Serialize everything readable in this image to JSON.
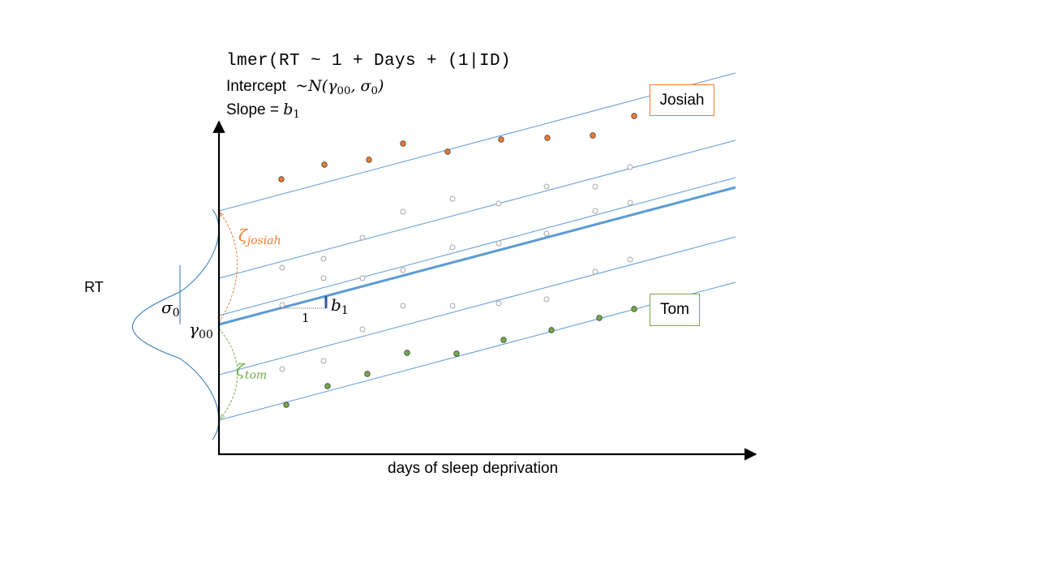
{
  "formula": {
    "code": "lmer(RT ~ 1 + Days + (1|ID)",
    "intercept_label": "Intercept",
    "intercept_dist": "~N(γ",
    "intercept_sub": "00",
    "intercept_rest": ", σ",
    "intercept_sub2": "0",
    "intercept_close": ")",
    "slope_label": "Slope = ",
    "slope_sym": "b",
    "slope_sub": "1"
  },
  "axes": {
    "y_label": "RT",
    "x_label": "days of sleep deprivation"
  },
  "annotations": {
    "sigma": "σ",
    "sigma_sub": "0",
    "gamma": "γ",
    "gamma_sub": "00",
    "b": "b",
    "b_sub": "1",
    "run": "1",
    "zeta_josiah": "ζ",
    "zeta_josiah_sub": "josiah",
    "zeta_tom": "ζ",
    "zeta_tom_sub": "tom"
  },
  "participants": {
    "josiah": {
      "name": "Josiah",
      "color": "#ED7D31"
    },
    "tom": {
      "name": "Tom",
      "color": "#70AD47"
    }
  },
  "colors": {
    "line": "#5B9BD5",
    "mean_line": "#5B9BD5",
    "hollow_point": "#A6A6A6"
  }
}
